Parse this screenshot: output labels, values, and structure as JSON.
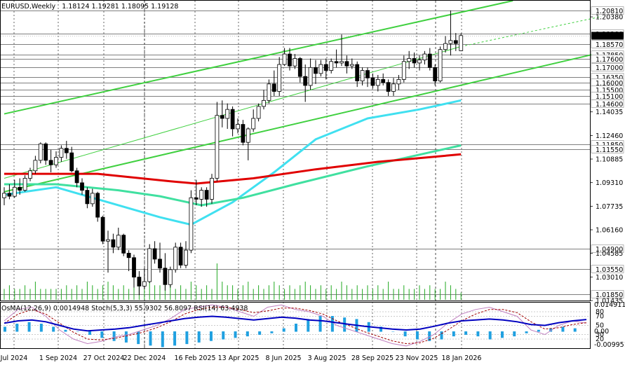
{
  "header": {
    "symbol": "EURUSD,Weekly",
    "ohlc": "1.18124 1.19281 1.18095 1.19128",
    "indicators": "OsMA(12,26,9) 0.0014948  Stoch(5,3,3) 55.9302 56.8097  RSI(14) 63.4938"
  },
  "colors": {
    "bull": "#ffffff",
    "bear": "#000000",
    "candle_outline": "#000000",
    "ma200": "#e00000",
    "ma144": "#40e0a0",
    "ma50": "#40e0f0",
    "channel": "#40d040",
    "volume": "#22aa22",
    "osma": "#20a0e0",
    "stoch_main": "#c080c0",
    "stoch_signal": "#a00000",
    "rsi": "#0000c0",
    "current_price": "#000000"
  },
  "chart_data": {
    "type": "candlestick",
    "title": "EURUSD,Weekly",
    "ylim": [
      1.01435,
      1.2146
    ],
    "y_ticks": [
      "1.20380",
      "1.14035",
      "1.12460",
      "1.10885",
      "1.09310",
      "1.07735",
      "1.06160",
      "1.04585",
      "1.03010",
      "1.01435"
    ],
    "levels": [
      "1.20810",
      "1.19280",
      "1.18570",
      "1.17850",
      "1.17600",
      "1.17000",
      "1.16350",
      "1.16000",
      "1.15500",
      "1.15100",
      "1.14600",
      "1.11850",
      "1.11550",
      "1.04900",
      "1.03550",
      "1.01850"
    ],
    "current_price": "1.19128",
    "x_ticks": [
      "Jul 2024",
      "1 Sep 2024",
      "27 Oct 2024",
      "22 Dec 2024",
      "16 Feb 2025",
      "13 Apr 2025",
      "8 Jun 2025",
      "3 Aug 2025",
      "28 Sep 2025",
      "23 Nov 2025",
      "18 Jan 2026"
    ],
    "candles_ohlc": [
      [
        1.083,
        1.09,
        1.078,
        1.086
      ],
      [
        1.086,
        1.092,
        1.082,
        1.084
      ],
      [
        1.084,
        1.095,
        1.083,
        1.09
      ],
      [
        1.09,
        1.096,
        1.085,
        1.088
      ],
      [
        1.088,
        1.098,
        1.087,
        1.096
      ],
      [
        1.096,
        1.103,
        1.094,
        1.101
      ],
      [
        1.101,
        1.111,
        1.099,
        1.108
      ],
      [
        1.108,
        1.12,
        1.106,
        1.119
      ],
      [
        1.119,
        1.12,
        1.105,
        1.108
      ],
      [
        1.108,
        1.115,
        1.1,
        1.105
      ],
      [
        1.105,
        1.114,
        1.103,
        1.11
      ],
      [
        1.11,
        1.118,
        1.107,
        1.116
      ],
      [
        1.116,
        1.121,
        1.109,
        1.113
      ],
      [
        1.113,
        1.117,
        1.1,
        1.101
      ],
      [
        1.101,
        1.103,
        1.09,
        1.093
      ],
      [
        1.093,
        1.096,
        1.085,
        1.088
      ],
      [
        1.088,
        1.09,
        1.076,
        1.079
      ],
      [
        1.079,
        1.089,
        1.077,
        1.086
      ],
      [
        1.086,
        1.087,
        1.067,
        1.07
      ],
      [
        1.07,
        1.071,
        1.052,
        1.054
      ],
      [
        1.054,
        1.061,
        1.033,
        1.055
      ],
      [
        1.055,
        1.059,
        1.046,
        1.05
      ],
      [
        1.05,
        1.063,
        1.048,
        1.058
      ],
      [
        1.058,
        1.059,
        1.044,
        1.046
      ],
      [
        1.046,
        1.048,
        1.034,
        1.043
      ],
      [
        1.043,
        1.045,
        1.023,
        1.03
      ],
      [
        1.03,
        1.034,
        1.018,
        1.024
      ],
      [
        1.024,
        1.036,
        1.022,
        1.027
      ],
      [
        1.027,
        1.052,
        1.026,
        1.049
      ],
      [
        1.049,
        1.054,
        1.039,
        1.042
      ],
      [
        1.042,
        1.053,
        1.033,
        1.036
      ],
      [
        1.036,
        1.046,
        1.021,
        1.025
      ],
      [
        1.025,
        1.037,
        1.023,
        1.035
      ],
      [
        1.035,
        1.053,
        1.033,
        1.05
      ],
      [
        1.05,
        1.053,
        1.036,
        1.038
      ],
      [
        1.038,
        1.054,
        1.036,
        1.048
      ],
      [
        1.048,
        1.088,
        1.046,
        1.083
      ],
      [
        1.083,
        1.095,
        1.078,
        1.082
      ],
      [
        1.082,
        1.09,
        1.077,
        1.088
      ],
      [
        1.088,
        1.09,
        1.077,
        1.082
      ],
      [
        1.082,
        1.099,
        1.079,
        1.096
      ],
      [
        1.096,
        1.147,
        1.094,
        1.138
      ],
      [
        1.138,
        1.148,
        1.13,
        1.136
      ],
      [
        1.136,
        1.146,
        1.129,
        1.142
      ],
      [
        1.142,
        1.144,
        1.124,
        1.129
      ],
      [
        1.129,
        1.136,
        1.126,
        1.132
      ],
      [
        1.132,
        1.135,
        1.118,
        1.12
      ],
      [
        1.12,
        1.13,
        1.108,
        1.129
      ],
      [
        1.129,
        1.142,
        1.127,
        1.136
      ],
      [
        1.136,
        1.146,
        1.134,
        1.144
      ],
      [
        1.144,
        1.155,
        1.142,
        1.148
      ],
      [
        1.148,
        1.162,
        1.146,
        1.159
      ],
      [
        1.159,
        1.168,
        1.151,
        1.154
      ],
      [
        1.154,
        1.177,
        1.151,
        1.172
      ],
      [
        1.172,
        1.183,
        1.171,
        1.179
      ],
      [
        1.179,
        1.183,
        1.168,
        1.171
      ],
      [
        1.171,
        1.179,
        1.169,
        1.176
      ],
      [
        1.176,
        1.177,
        1.16,
        1.164
      ],
      [
        1.164,
        1.172,
        1.147,
        1.158
      ],
      [
        1.158,
        1.176,
        1.155,
        1.17
      ],
      [
        1.17,
        1.175,
        1.159,
        1.166
      ],
      [
        1.166,
        1.175,
        1.164,
        1.172
      ],
      [
        1.172,
        1.176,
        1.162,
        1.168
      ],
      [
        1.168,
        1.176,
        1.166,
        1.174
      ],
      [
        1.174,
        1.182,
        1.17,
        1.173
      ],
      [
        1.173,
        1.192,
        1.171,
        1.174
      ],
      [
        1.174,
        1.178,
        1.166,
        1.171
      ],
      [
        1.171,
        1.176,
        1.169,
        1.172
      ],
      [
        1.172,
        1.174,
        1.157,
        1.161
      ],
      [
        1.161,
        1.17,
        1.158,
        1.168
      ],
      [
        1.168,
        1.17,
        1.157,
        1.163
      ],
      [
        1.163,
        1.166,
        1.156,
        1.158
      ],
      [
        1.158,
        1.165,
        1.154,
        1.162
      ],
      [
        1.162,
        1.166,
        1.158,
        1.16
      ],
      [
        1.16,
        1.162,
        1.151,
        1.154
      ],
      [
        1.154,
        1.163,
        1.151,
        1.159
      ],
      [
        1.159,
        1.165,
        1.155,
        1.162
      ],
      [
        1.162,
        1.178,
        1.16,
        1.174
      ],
      [
        1.174,
        1.181,
        1.169,
        1.176
      ],
      [
        1.176,
        1.18,
        1.17,
        1.173
      ],
      [
        1.173,
        1.178,
        1.168,
        1.175
      ],
      [
        1.175,
        1.181,
        1.172,
        1.179
      ],
      [
        1.179,
        1.183,
        1.168,
        1.17
      ],
      [
        1.17,
        1.172,
        1.158,
        1.161
      ],
      [
        1.161,
        1.184,
        1.16,
        1.182
      ],
      [
        1.182,
        1.191,
        1.18,
        1.186
      ],
      [
        1.186,
        1.2081,
        1.178,
        1.188
      ],
      [
        1.188,
        1.193,
        1.181,
        1.186
      ],
      [
        1.1812,
        1.1928,
        1.1809,
        1.1913
      ]
    ],
    "ma_slow_red": [
      [
        0,
        1.099
      ],
      [
        18,
        1.099
      ],
      [
        32,
        1.094
      ],
      [
        37,
        1.0925
      ],
      [
        48,
        1.096
      ],
      [
        60,
        1.102
      ],
      [
        72,
        1.107
      ],
      [
        88,
        1.112
      ]
    ],
    "ma_mid_teal": [
      [
        0,
        1.092
      ],
      [
        10,
        1.092
      ],
      [
        22,
        1.088
      ],
      [
        30,
        1.084
      ],
      [
        38,
        1.078
      ],
      [
        46,
        1.083
      ],
      [
        56,
        1.092
      ],
      [
        70,
        1.104
      ],
      [
        88,
        1.118
      ]
    ],
    "ma_fast_cyan": [
      [
        0,
        1.085
      ],
      [
        10,
        1.09
      ],
      [
        20,
        1.08
      ],
      [
        30,
        1.07
      ],
      [
        36,
        1.065
      ],
      [
        44,
        1.08
      ],
      [
        52,
        1.1
      ],
      [
        60,
        1.122
      ],
      [
        70,
        1.136
      ],
      [
        80,
        1.142
      ],
      [
        88,
        1.148
      ]
    ],
    "channel_lines": [
      [
        [
          0,
          1.139
        ],
        [
          98,
          1.2146
        ]
      ],
      [
        [
          0,
          1.087
        ],
        [
          115,
          1.18
        ]
      ],
      [
        [
          0,
          1.096
        ],
        [
          88,
          1.184
        ]
      ]
    ],
    "volume": [
      0.3,
      0.4,
      0.3,
      0.3,
      0.4,
      0.3,
      0.5,
      0.3,
      0.3,
      0.3,
      0.3,
      0.3,
      0.4,
      0.3,
      0.4,
      0.3,
      0.5,
      0.4,
      0.3,
      0.4,
      0.5,
      0.4,
      0.3,
      0.4,
      0.3,
      0.4,
      0.5,
      0.3,
      0.6,
      0.4,
      0.4,
      0.5,
      0.4,
      0.3,
      0.4,
      0.3,
      0.5,
      0.4,
      0.3,
      0.4,
      0.3,
      1.0,
      0.5,
      0.4,
      0.4,
      0.3,
      0.4,
      0.5,
      0.3,
      0.4,
      0.3,
      0.4,
      0.5,
      0.4,
      0.3,
      0.4,
      0.3,
      0.4,
      0.5,
      0.4,
      0.3,
      0.4,
      0.3,
      0.4,
      0.3,
      0.5,
      0.4,
      0.3,
      0.4,
      0.3,
      0.4,
      0.3,
      0.4,
      0.3,
      0.5,
      0.3,
      0.3,
      0.4,
      0.3,
      0.3,
      0.4,
      0.3,
      0.4,
      0.3,
      0.3,
      0.5,
      0.4,
      0.3,
      0.2
    ],
    "osma": [
      0.3,
      0.5,
      0.6,
      0.5,
      0.3,
      0.1,
      0.0,
      -0.2,
      -0.4,
      -0.6,
      -0.7,
      -0.8,
      -0.9,
      -1.0,
      -0.9,
      -0.8,
      -0.7,
      -0.6,
      -0.5,
      -0.4,
      -0.3,
      -0.2,
      -0.1,
      0.2,
      0.5,
      0.8,
      1.0,
      1.0,
      0.9,
      0.8,
      0.6,
      0.3,
      0.0,
      -0.3,
      -0.5,
      -0.6,
      -0.5,
      -0.3,
      -0.2,
      -0.3,
      -0.5,
      -0.4,
      -0.3,
      -0.1,
      0.1,
      0.2,
      0.3,
      0.2
    ],
    "osma_axis": [
      "0.0149116",
      "0.00",
      "-0.009951"
    ],
    "stoch_main": [
      60,
      85,
      90,
      70,
      40,
      20,
      10,
      15,
      25,
      30,
      40,
      50,
      65,
      85,
      90,
      95,
      90,
      80,
      70,
      90,
      95,
      85,
      80,
      70,
      50,
      40,
      30,
      20,
      10,
      5,
      15,
      30,
      55,
      75,
      85,
      90,
      80,
      70,
      40,
      30,
      50,
      60,
      55
    ],
    "stoch_signal": [
      55,
      75,
      85,
      75,
      55,
      35,
      20,
      18,
      22,
      28,
      35,
      45,
      58,
      75,
      85,
      90,
      90,
      85,
      78,
      82,
      88,
      88,
      83,
      75,
      60,
      48,
      36,
      26,
      16,
      10,
      12,
      22,
      40,
      60,
      75,
      85,
      85,
      78,
      58,
      42,
      45,
      52,
      56
    ],
    "rsi": [
      55,
      60,
      62,
      58,
      50,
      42,
      38,
      40,
      42,
      45,
      50,
      55,
      60,
      65,
      68,
      70,
      68,
      65,
      62,
      65,
      68,
      66,
      62,
      60,
      56,
      52,
      48,
      45,
      42,
      40,
      42,
      48,
      55,
      60,
      62,
      64,
      62,
      58,
      52,
      50,
      56,
      60,
      63
    ],
    "osc_levels": [
      "80",
      "70",
      "50",
      "30",
      "20"
    ]
  }
}
